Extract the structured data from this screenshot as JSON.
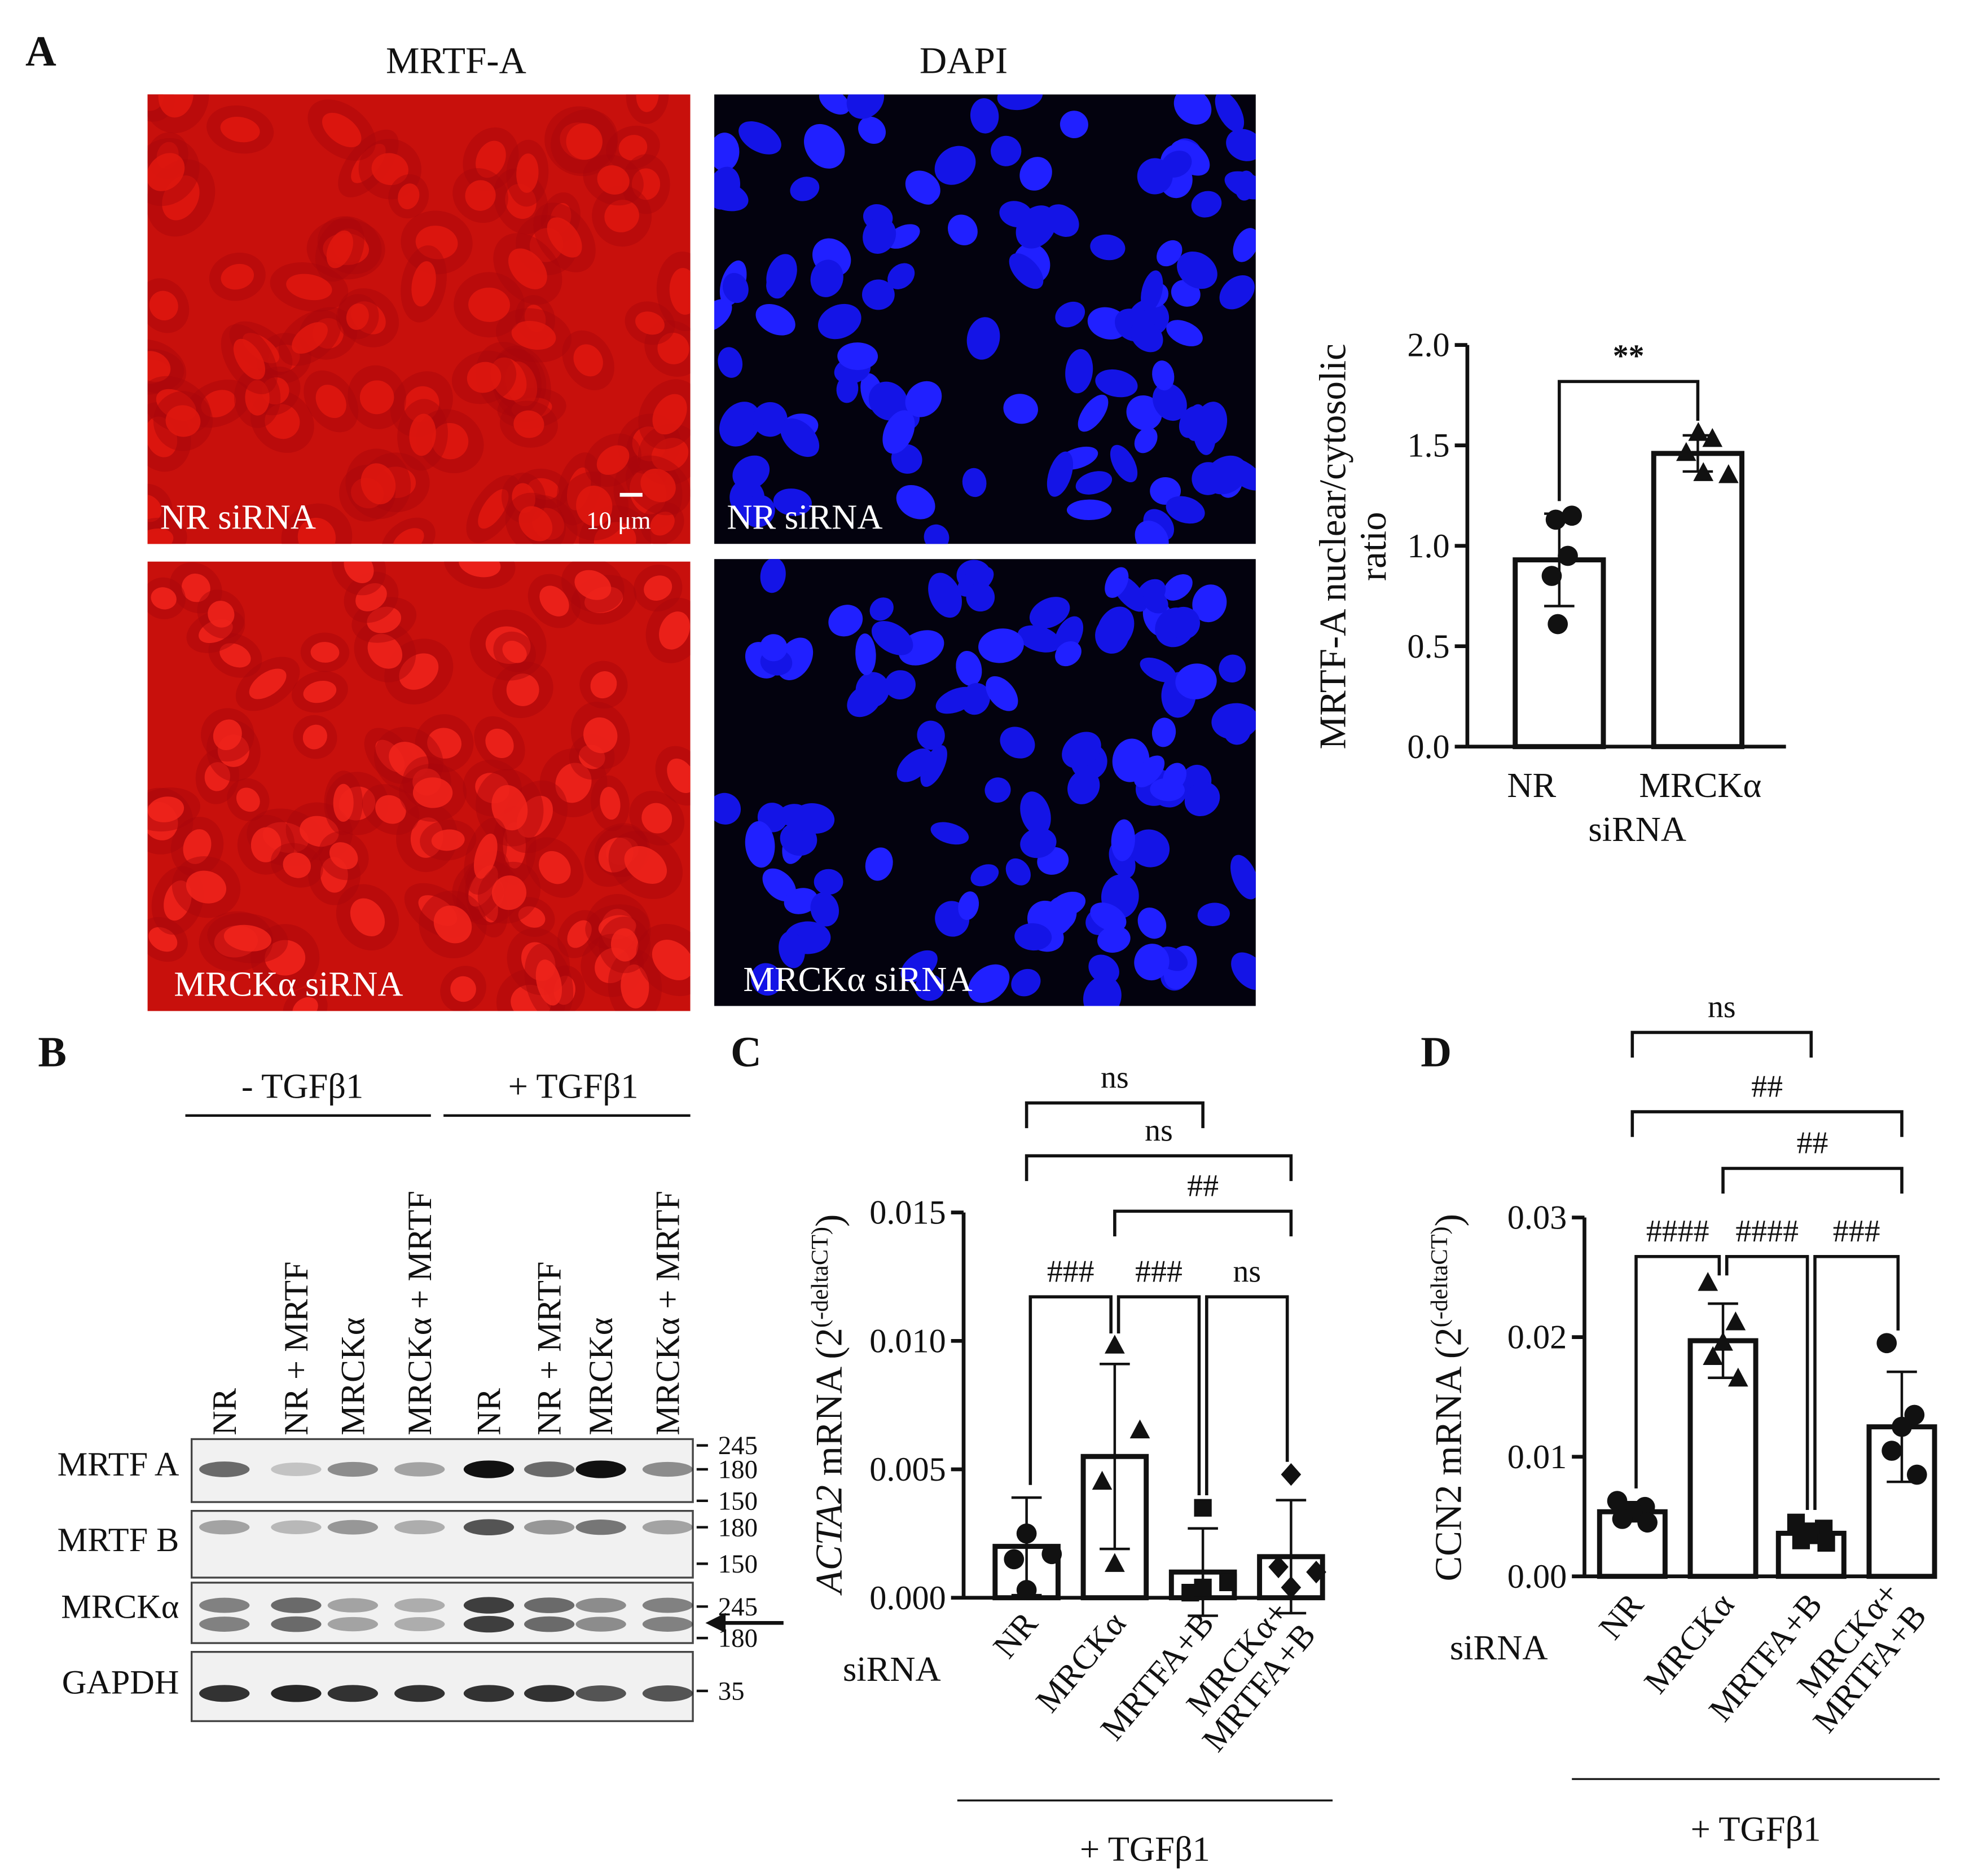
{
  "panel_labels": [
    "A",
    "B",
    "C",
    "D"
  ],
  "panel_a": {
    "column_titles": [
      "MRTF-A",
      "DAPI"
    ],
    "row_labels": [
      "NR siRNA",
      "MRCKα siRNA"
    ],
    "scale_bar": "10 μm"
  },
  "panel_b": {
    "conditions": [
      "- TGFβ1",
      "+ TGFβ1"
    ],
    "lanes": [
      "NR",
      "NR + MRTF",
      "MRCKα",
      "MRCKα + MRTF",
      "NR",
      "NR + MRTF",
      "MRCKα",
      "MRCKα + MRTF"
    ],
    "rows": [
      {
        "name": "MRTF A",
        "markers": [
          245,
          180,
          150
        ]
      },
      {
        "name": "MRTF B",
        "markers": [
          180,
          150
        ]
      },
      {
        "name": "MRCKα",
        "markers": [
          245,
          180
        ]
      },
      {
        "name": "GAPDH",
        "markers": [
          35
        ]
      }
    ]
  },
  "chart_data": [
    {
      "type": "bar",
      "y_label": [
        "MRTF-A nuclear/cytosolic",
        "ratio"
      ],
      "x_label": "siRNA",
      "categories": [
        "NR",
        "MRCKα"
      ],
      "values": [
        0.93,
        1.46
      ],
      "errors": [
        0.23,
        0.09
      ],
      "points": [
        [
          1.13,
          1.15,
          0.95,
          0.85,
          0.61
        ],
        [
          1.56,
          1.53,
          1.46,
          1.36,
          1.35
        ]
      ],
      "markers": [
        "circle",
        "triangle"
      ],
      "ylim": [
        0,
        2
      ],
      "yticks": [
        {
          "value": 0,
          "label": "0.0"
        },
        {
          "value": 0.5,
          "label": "0.5"
        },
        {
          "value": 1,
          "label": "1.0"
        },
        {
          "value": 1.5,
          "label": "1.5"
        },
        {
          "value": 2,
          "label": "2.0"
        }
      ],
      "comparisons": [
        {
          "groups": [
            0,
            1
          ],
          "label": "**"
        }
      ]
    },
    {
      "type": "bar",
      "y_label": {
        "gene": "ACTA2",
        "unit": " mRNA (2",
        "exponent": "(-deltaCT)",
        "close": ")"
      },
      "gene_italic": true,
      "x_label": "siRNA",
      "group_label": "+ TGFβ1",
      "categories": [
        "NR",
        "MRCKα",
        "MRTFA+B",
        [
          "MRCKα+",
          "MRTFA+B"
        ]
      ],
      "values": [
        0.002,
        0.0055,
        0.001,
        0.0016
      ],
      "errors": [
        0.0019,
        0.0036,
        0.0017,
        0.0022
      ],
      "points": [
        [
          0.0025,
          0.0017,
          0.0015,
          0.0003
        ],
        [
          0.0098,
          0.0065,
          0.0045,
          0.0013
        ],
        [
          0.0035,
          0.0006,
          0.0002,
          0.0004
        ],
        [
          0.0048,
          0.001,
          0.0012,
          0.0004
        ]
      ],
      "markers": [
        "circle",
        "triangle",
        "square",
        "diamond"
      ],
      "ylim": [
        0,
        0.015
      ],
      "yticks": [
        {
          "value": 0,
          "label": "0.000"
        },
        {
          "value": 0.005,
          "label": "0.005"
        },
        {
          "value": 0.01,
          "label": "0.010"
        },
        {
          "value": 0.015,
          "label": "0.015"
        }
      ],
      "comparisons": [
        {
          "groups": [
            0,
            2
          ],
          "label": "ns"
        },
        {
          "groups": [
            0,
            3
          ],
          "label": "ns"
        },
        {
          "groups": [
            1,
            3
          ],
          "label": "##"
        },
        {
          "groups": [
            0,
            1
          ],
          "label": "###"
        },
        {
          "groups": [
            1,
            2
          ],
          "label": "###"
        },
        {
          "groups": [
            2,
            3
          ],
          "label": "ns"
        }
      ]
    },
    {
      "type": "bar",
      "y_label": {
        "gene": "CCN2",
        "unit": " mRNA (2",
        "exponent": "(-deltaCT)",
        "close": ")"
      },
      "gene_italic": false,
      "x_label": "siRNA",
      "group_label": "+ TGFβ1",
      "categories": [
        "NR",
        "MRCKα",
        "MRTFA+B",
        [
          "MRCKα+",
          "MRTFA+B"
        ]
      ],
      "values": [
        0.0054,
        0.0197,
        0.0036,
        0.0125
      ],
      "errors": [
        0.0008,
        0.0031,
        0.0008,
        0.0046
      ],
      "points": [
        [
          0.0063,
          0.0058,
          0.0054,
          0.0048,
          0.0045
        ],
        [
          0.0245,
          0.0212,
          0.0195,
          0.0183,
          0.0165
        ],
        [
          0.0045,
          0.004,
          0.0036,
          0.003,
          0.0028
        ],
        [
          0.0195,
          0.0135,
          0.0125,
          0.0105,
          0.0085
        ]
      ],
      "markers": [
        "circle",
        "triangle",
        "square",
        "circle"
      ],
      "ylim": [
        0,
        0.03
      ],
      "yticks": [
        {
          "value": 0,
          "label": "0.00"
        },
        {
          "value": 0.01,
          "label": "0.01"
        },
        {
          "value": 0.02,
          "label": "0.02"
        },
        {
          "value": 0.03,
          "label": "0.03"
        }
      ],
      "comparisons": [
        {
          "groups": [
            0,
            2
          ],
          "label": "ns"
        },
        {
          "groups": [
            0,
            3
          ],
          "label": "##"
        },
        {
          "groups": [
            1,
            3
          ],
          "label": "##"
        },
        {
          "groups": [
            0,
            1
          ],
          "label": "####"
        },
        {
          "groups": [
            1,
            2
          ],
          "label": "####"
        },
        {
          "groups": [
            2,
            3
          ],
          "label": "###"
        }
      ]
    }
  ]
}
